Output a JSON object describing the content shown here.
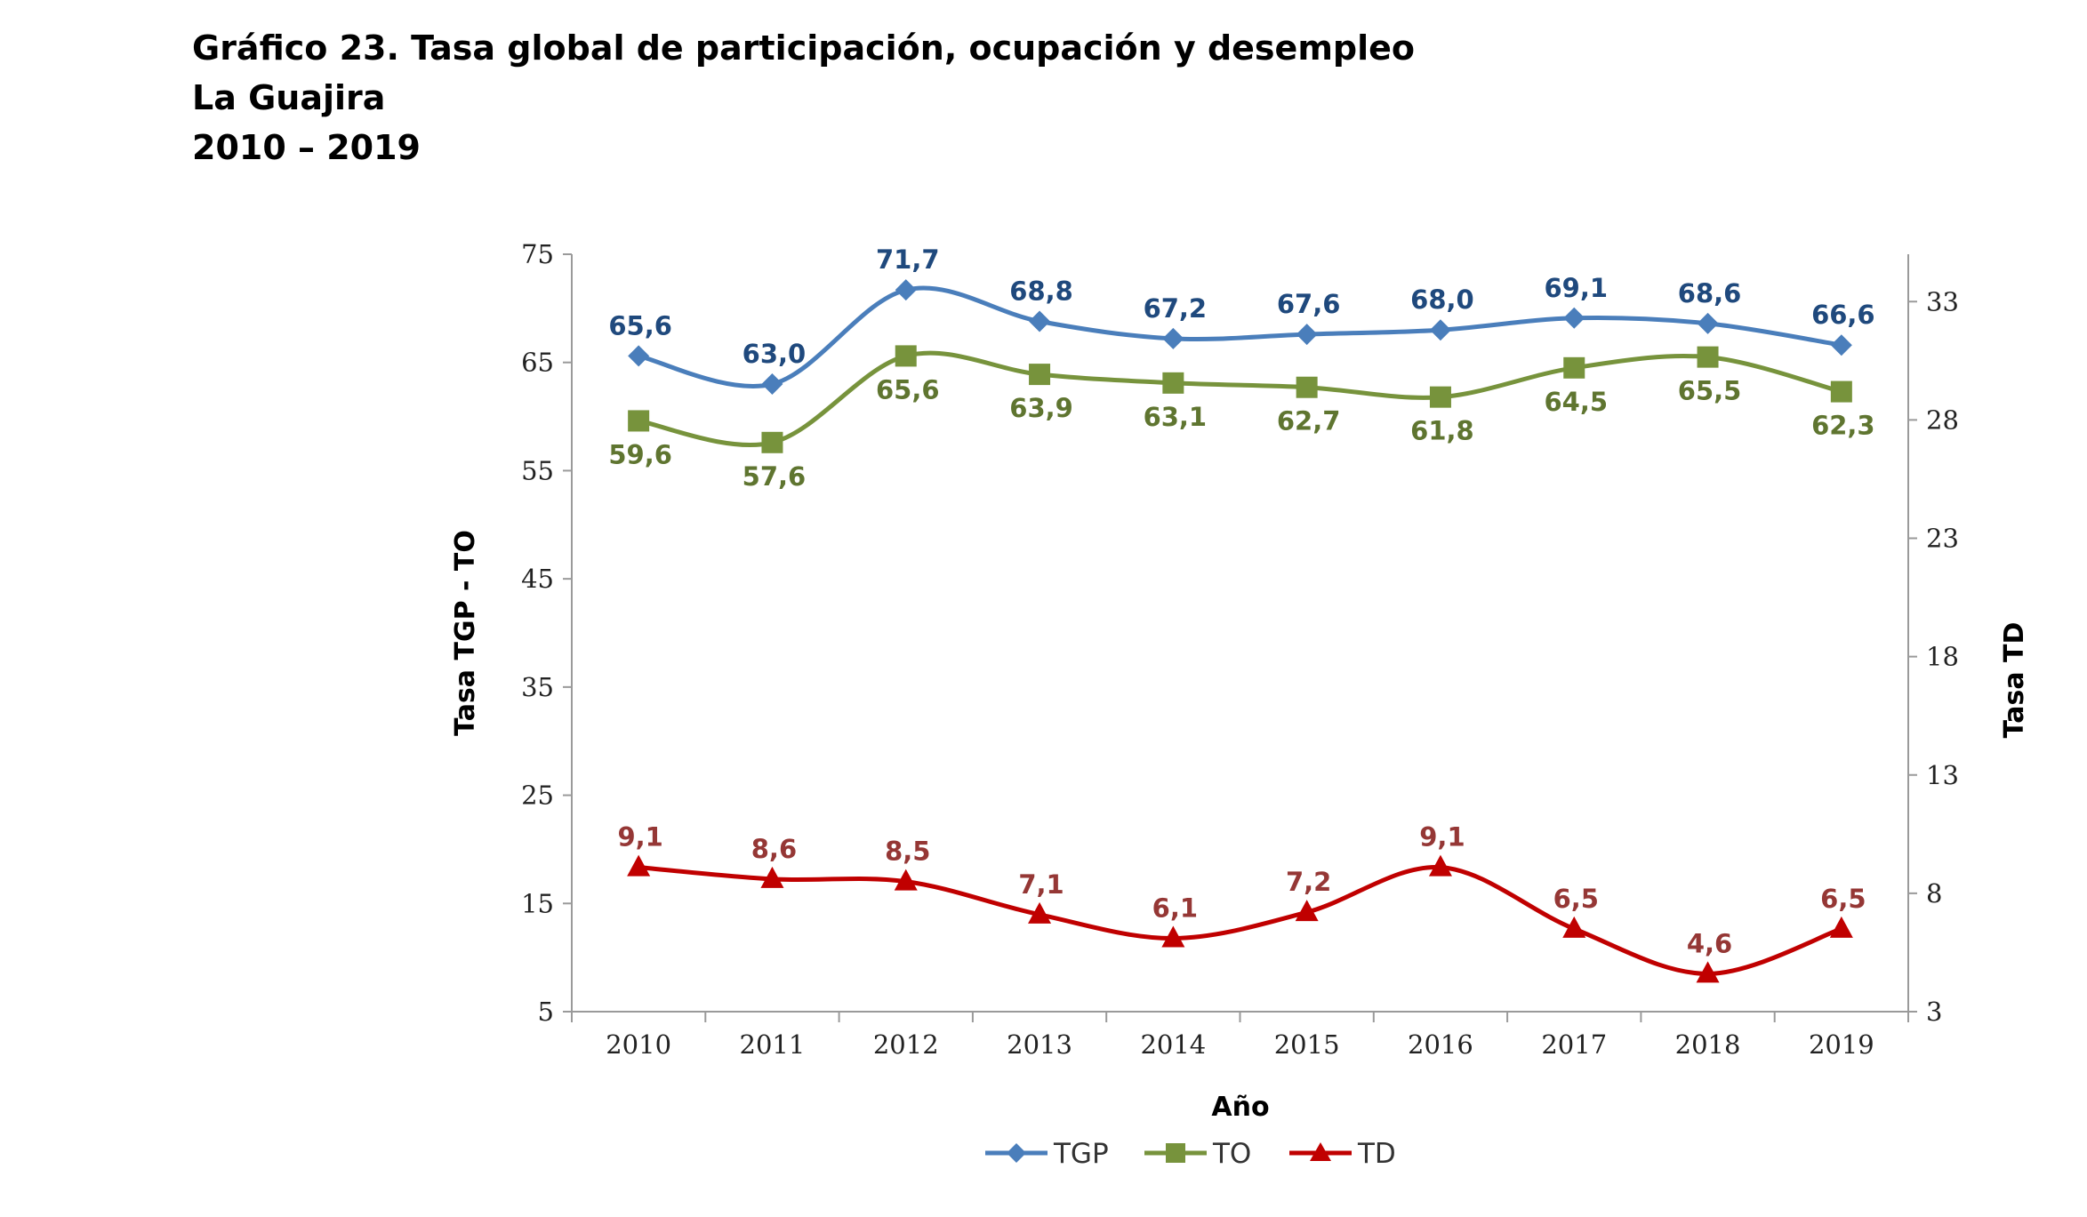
{
  "title": {
    "line1": "Gráfico 23. Tasa global de participación, ocupación y desempleo",
    "line2": "La Guajira",
    "line3": "2010 – 2019"
  },
  "chart_data": {
    "type": "line",
    "categories": [
      "2010",
      "2011",
      "2012",
      "2013",
      "2014",
      "2015",
      "2016",
      "2017",
      "2018",
      "2019"
    ],
    "xlabel": "Año",
    "ylabel_left": "Tasa TGP - TO",
    "ylabel_right": "Tasa TD",
    "ylim_left": [
      5,
      75
    ],
    "yticks_left": [
      5,
      15,
      25,
      35,
      45,
      55,
      65,
      75
    ],
    "ylim_right": [
      3,
      35
    ],
    "yticks_right": [
      3,
      8,
      13,
      18,
      23,
      28,
      33
    ],
    "grid": false,
    "legend_position": "bottom",
    "series": [
      {
        "name": "TGP",
        "axis": "left",
        "marker": "diamond",
        "color": "#4a7ebb",
        "label_color": "#1f497d",
        "values": [
          65.6,
          63.0,
          71.7,
          68.8,
          67.2,
          67.6,
          68.0,
          69.1,
          68.6,
          66.6
        ],
        "labels": [
          "65,6",
          "63,0",
          "71,7",
          "68,8",
          "67,2",
          "67,6",
          "68,0",
          "69,1",
          "68,6",
          "66,6"
        ]
      },
      {
        "name": "TO",
        "axis": "left",
        "marker": "square",
        "color": "#77933c",
        "label_color": "#5f7530",
        "values": [
          59.6,
          57.6,
          65.6,
          63.9,
          63.1,
          62.7,
          61.8,
          64.5,
          65.5,
          62.3
        ],
        "labels": [
          "59,6",
          "57,6",
          "65,6",
          "63,9",
          "63,1",
          "62,7",
          "61,8",
          "64,5",
          "65,5",
          "62,3"
        ]
      },
      {
        "name": "TD",
        "axis": "right",
        "marker": "triangle",
        "color": "#c00000",
        "label_color": "#953735",
        "values": [
          9.1,
          8.6,
          8.5,
          7.1,
          6.1,
          7.2,
          9.1,
          6.5,
          4.6,
          6.5
        ],
        "labels": [
          "9,1",
          "8,6",
          "8,5",
          "7,1",
          "6,1",
          "7,2",
          "9,1",
          "6,5",
          "4,6",
          "6,5"
        ]
      }
    ]
  }
}
